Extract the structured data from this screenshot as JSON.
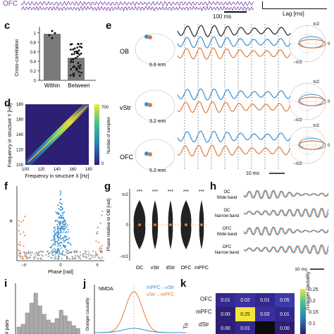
{
  "top": {
    "ofc_label": "OFC",
    "scalebar_100ms": "100 ms",
    "lag_label": "Lag [ms]"
  },
  "panels": {
    "c": "c",
    "d": "d",
    "e": "e",
    "f": "f",
    "g": "g",
    "h": "h",
    "i": "i",
    "j": "j",
    "k": "k"
  },
  "panel_c": {
    "ylabel": "Cross-correlation",
    "yticks": [
      "0",
      "0.2",
      "0.4",
      "0.6",
      "0.8",
      "1"
    ],
    "categories": [
      "Within",
      "Between"
    ]
  },
  "panel_d": {
    "xlabel": "Frequency in structure X [Hz]",
    "ylabel": "Frequency in structure Y [Hz]",
    "xticks": [
      "100",
      "120",
      "140",
      "160",
      "180"
    ],
    "yticks": [
      "100",
      "120",
      "140",
      "160",
      "180"
    ],
    "colorbar_label": "Number of samples",
    "colorbar_ticks": [
      "700",
      "0"
    ]
  },
  "panel_e": {
    "regions": [
      {
        "name": "OB",
        "depth": "6.6 mm"
      },
      {
        "name": "vStr",
        "depth": "3.2 mm"
      },
      {
        "name": "OFC",
        "depth": "5.2 mm"
      }
    ],
    "scalebar": "10 ms",
    "polar_labels": {
      "top": "π/2",
      "right": "0",
      "bottom": "−π/2"
    }
  },
  "panel_f": {
    "xlabel": "Phase [rad]",
    "xticks": [
      "−π",
      "0",
      "π"
    ],
    "ytick": "π"
  },
  "panel_g": {
    "ylabel": "Phase relative to OB [rad]",
    "yticks": [
      "π/2",
      "0",
      "−π/2"
    ],
    "categories": [
      "OC",
      "vStr",
      "dStr",
      "OFC",
      "mPFC"
    ],
    "significance": [
      "***",
      "***",
      "***",
      "***",
      "***"
    ]
  },
  "panel_h": {
    "rows": [
      "OC\nWide band",
      "OC\nNarrow band",
      "OFC\nWide band",
      "OFC\nNarrow band"
    ],
    "row_lines": [
      [
        "OC",
        "Wide band"
      ],
      [
        "OC",
        "Narrow band"
      ],
      [
        "OFC",
        "Wide band"
      ],
      [
        "OFC",
        "Narrow band"
      ]
    ],
    "scalebar": "10 ms"
  },
  "panel_i": {
    "ylabel": "# pairs"
  },
  "panel_j": {
    "title": "NMDA",
    "ylabel": "Granger causality",
    "legend": [
      "mPFC→vStr",
      "vStr→mPFC"
    ],
    "colors": [
      "#3b8fd0",
      "#e07a3a"
    ]
  },
  "panel_k": {
    "rows": [
      "OFC",
      "mPFC",
      "dStr"
    ],
    "values": [
      [
        "0.01",
        "0.02",
        "0.01",
        "0.05"
      ],
      [
        "0.00",
        "0.25",
        "0.02",
        "0.01"
      ],
      [
        "0.00",
        "0.01",
        "",
        "0.00"
      ]
    ],
    "colorbar_ticks": [
      "0.25",
      "0.2",
      "0.15",
      "0.1"
    ],
    "colorbar_label": "Granger causality",
    "ylabel": "To"
  },
  "colors": {
    "blue": "#3b8fd0",
    "orange": "#e07a3a",
    "black": "#222222",
    "purple": "#7a3fb0",
    "bar_gray": "#7a7a7a"
  }
}
